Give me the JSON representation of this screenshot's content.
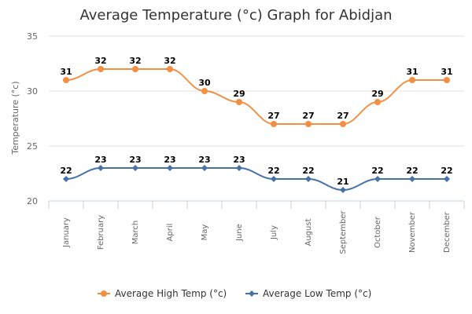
{
  "chart_data": {
    "type": "line",
    "title": "Average Temperature (°c) Graph for Abidjan",
    "ylabel": "Temperature (°c)",
    "xlabel": "",
    "ylim": [
      20,
      35
    ],
    "yticks": [
      20,
      25,
      30,
      35
    ],
    "categories": [
      "January",
      "February",
      "March",
      "April",
      "May",
      "June",
      "July",
      "August",
      "September",
      "October",
      "November",
      "December"
    ],
    "grid": true,
    "legend": "bottom-center",
    "series": [
      {
        "name": "Average High Temp (°c)",
        "color": "#f28f43",
        "marker": "circle",
        "values": [
          31,
          32,
          32,
          32,
          30,
          29,
          27,
          27,
          27,
          29,
          31,
          31
        ]
      },
      {
        "name": "Average Low Temp (°c)",
        "color": "#4572a7",
        "marker": "diamond",
        "values": [
          22,
          23,
          23,
          23,
          23,
          23,
          22,
          22,
          21,
          22,
          22,
          22
        ]
      }
    ]
  }
}
